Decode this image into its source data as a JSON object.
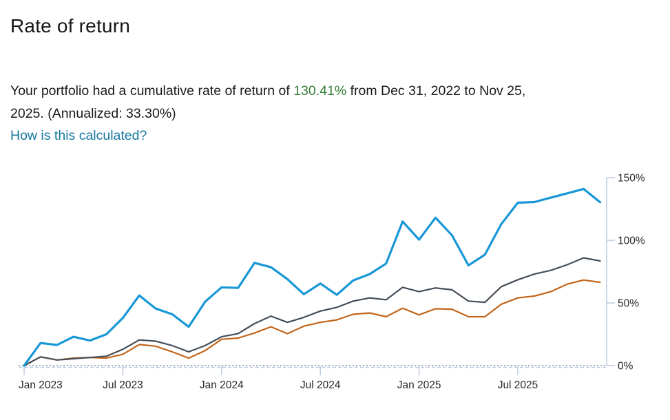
{
  "page": {
    "title": "Rate of return",
    "summary": {
      "prefix": "Your portfolio had a cumulative rate of return of ",
      "highlight_value": "130.41%",
      "middle": " from Dec 31, 2022 to Nov 25,",
      "tail": "2025. (Annualized: 33.30%)"
    },
    "link_label": "How is this calculated?"
  },
  "colors": {
    "text": "#1a1a1a",
    "highlight_green": "#357e38",
    "link_teal": "#1577a0",
    "axis_line": "#bccadf",
    "zero_dots": "#8f959b",
    "zero_dash_blue": "#b9c9e2",
    "tick_label": "#26282a",
    "portfolio_blue": "#1897d6",
    "benchmark_gray": "#454f59",
    "benchmark_orange": "#c2651b"
  },
  "chart_data": {
    "type": "line",
    "title": "",
    "xlabel": "",
    "ylabel": "",
    "x_start": "Dec 31, 2022",
    "x_end": "Nov 25, 2025",
    "x_unit": "month",
    "ylim": [
      0,
      150
    ],
    "y_ticks": [
      0,
      50,
      100,
      150
    ],
    "y_tick_labels": [
      "0%",
      "50%",
      "100%",
      "150%"
    ],
    "y_axis_side": "right",
    "grid": "zero-line-only",
    "legend": "none",
    "x_tick_labels": [
      "Jan 2023",
      "Jul 2023",
      "Jan 2024",
      "Jul 2024",
      "Jan 2025",
      "Jul 2025"
    ],
    "x_tick_month_indices": [
      0,
      6,
      12,
      18,
      24,
      30
    ],
    "series": [
      {
        "name": "benchmark-orange",
        "color": "#c2651b",
        "width": 2.2,
        "values": [
          0,
          7,
          4.5,
          6,
          6.5,
          6,
          9,
          16.8,
          15.5,
          11,
          6,
          12,
          21,
          22,
          26,
          31,
          25.5,
          31.5,
          34.5,
          36.5,
          41,
          42,
          39,
          45.8,
          40.5,
          45.4,
          45,
          39,
          39,
          49,
          54,
          55.5,
          59,
          65,
          68.3,
          66.5
        ]
      },
      {
        "name": "benchmark-gray",
        "color": "#454f59",
        "width": 2.2,
        "values": [
          0,
          7,
          4.5,
          5.5,
          6.5,
          7.5,
          13,
          20.5,
          19.5,
          16,
          11,
          16,
          23,
          25.5,
          33.5,
          39.5,
          34.5,
          38.5,
          43.5,
          46.5,
          51.5,
          54,
          52.5,
          62.5,
          59,
          62,
          60.5,
          51.5,
          50.5,
          63,
          68.5,
          73,
          76,
          80.5,
          86,
          83.5
        ]
      },
      {
        "name": "portfolio-blue",
        "color": "#1897d6",
        "width": 3.2,
        "values": [
          0,
          18,
          16.5,
          23,
          20,
          25,
          38,
          56,
          45.5,
          41,
          31,
          51,
          62.5,
          62,
          82,
          78.5,
          69,
          57,
          65.5,
          56.5,
          68,
          73,
          81.5,
          115,
          100.5,
          118,
          104,
          80,
          88.5,
          113,
          130,
          130.5,
          134,
          137.5,
          141,
          130.41
        ]
      }
    ]
  }
}
